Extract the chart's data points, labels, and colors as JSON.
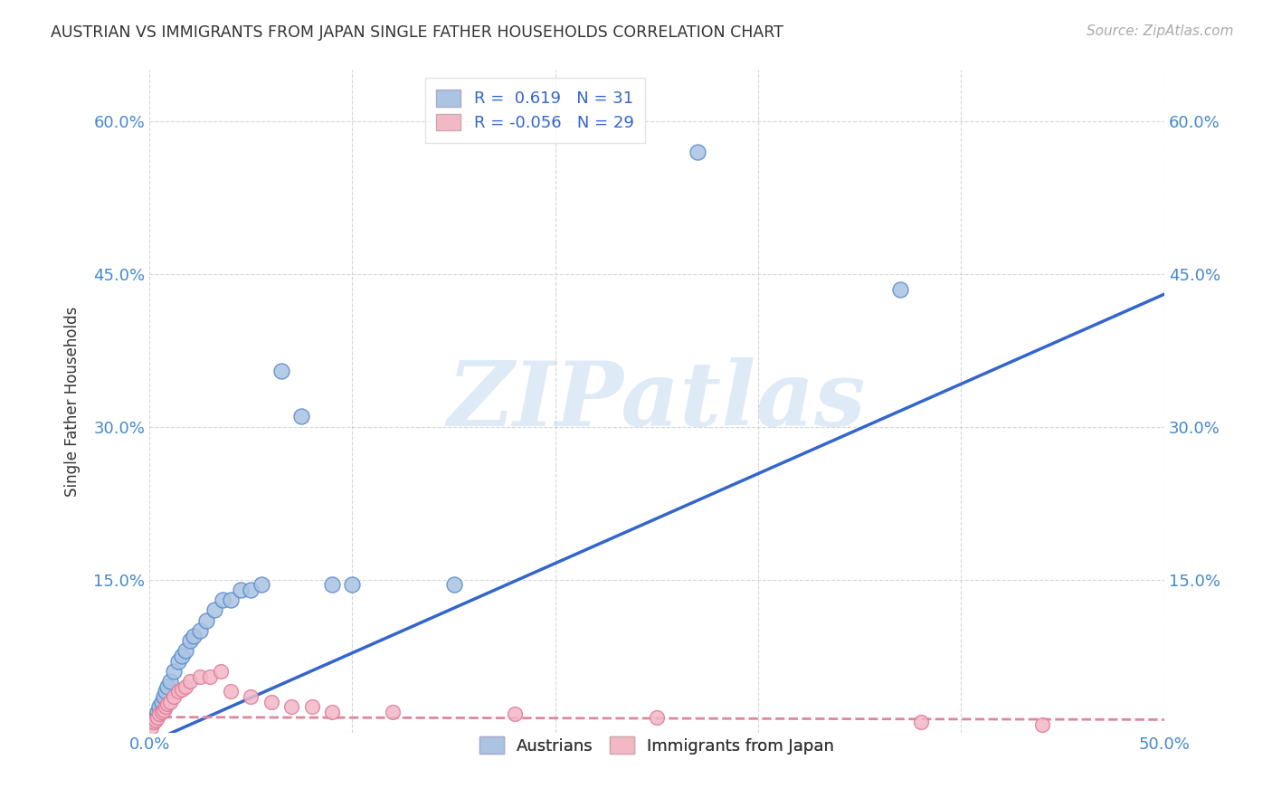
{
  "title": "AUSTRIAN VS IMMIGRANTS FROM JAPAN SINGLE FATHER HOUSEHOLDS CORRELATION CHART",
  "source": "Source: ZipAtlas.com",
  "ylabel": "Single Father Households",
  "watermark": "ZIPatlas",
  "xlim": [
    0.0,
    0.5
  ],
  "ylim": [
    0.0,
    0.65
  ],
  "xticks": [
    0.0,
    0.1,
    0.2,
    0.3,
    0.4,
    0.5
  ],
  "xticklabels": [
    "0.0%",
    "",
    "",
    "",
    "",
    "50.0%"
  ],
  "yticks": [
    0.0,
    0.15,
    0.3,
    0.45,
    0.6
  ],
  "yticklabels": [
    "",
    "15.0%",
    "30.0%",
    "45.0%",
    "60.0%"
  ],
  "background_color": "#ffffff",
  "grid_color": "#cccccc",
  "austrians_color": "#aac4e2",
  "austrians_edge_color": "#5588cc",
  "japan_color": "#f2b8c6",
  "japan_edge_color": "#e07898",
  "austria_R": 0.619,
  "austria_N": 31,
  "japan_R": -0.056,
  "japan_N": 29,
  "legend_label_1": "Austrians",
  "legend_label_2": "Immigrants from Japan",
  "austria_trendline_color": "#3366cc",
  "japan_trendline_color": "#dd8899",
  "austria_scatter_x": [
    0.001,
    0.002,
    0.003,
    0.004,
    0.005,
    0.006,
    0.007,
    0.008,
    0.009,
    0.01,
    0.012,
    0.014,
    0.016,
    0.018,
    0.02,
    0.022,
    0.025,
    0.028,
    0.032,
    0.036,
    0.04,
    0.045,
    0.05,
    0.055,
    0.065,
    0.075,
    0.09,
    0.1,
    0.15,
    0.27,
    0.37
  ],
  "austria_scatter_y": [
    0.01,
    0.012,
    0.015,
    0.02,
    0.025,
    0.03,
    0.035,
    0.04,
    0.045,
    0.05,
    0.06,
    0.07,
    0.075,
    0.08,
    0.09,
    0.095,
    0.1,
    0.11,
    0.12,
    0.13,
    0.13,
    0.14,
    0.14,
    0.145,
    0.355,
    0.31,
    0.145,
    0.145,
    0.145,
    0.57,
    0.435
  ],
  "japan_scatter_x": [
    0.001,
    0.002,
    0.003,
    0.004,
    0.005,
    0.006,
    0.007,
    0.008,
    0.009,
    0.01,
    0.012,
    0.014,
    0.016,
    0.018,
    0.02,
    0.025,
    0.03,
    0.035,
    0.04,
    0.05,
    0.06,
    0.07,
    0.08,
    0.09,
    0.12,
    0.18,
    0.25,
    0.38,
    0.44
  ],
  "japan_scatter_y": [
    0.005,
    0.01,
    0.012,
    0.015,
    0.018,
    0.02,
    0.022,
    0.025,
    0.028,
    0.03,
    0.035,
    0.04,
    0.042,
    0.045,
    0.05,
    0.055,
    0.055,
    0.06,
    0.04,
    0.035,
    0.03,
    0.025,
    0.025,
    0.02,
    0.02,
    0.018,
    0.015,
    0.01,
    0.008
  ]
}
